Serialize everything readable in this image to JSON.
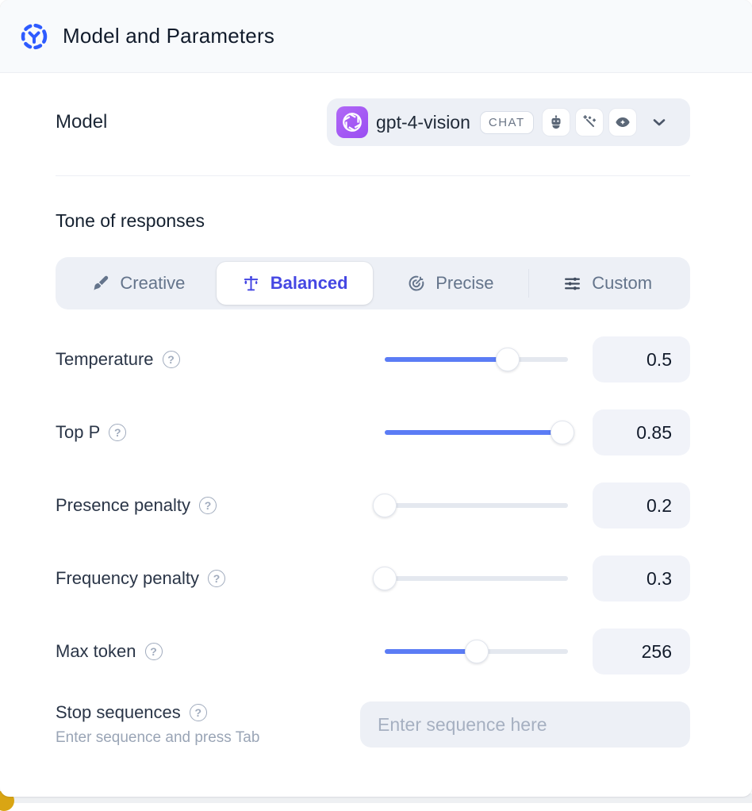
{
  "header": {
    "title": "Model and Parameters"
  },
  "model_row": {
    "label": "Model",
    "selector": {
      "model_name": "gpt-4-vision",
      "type_badge": "CHAT",
      "capability_icons": [
        "robot-icon",
        "magic-wand-icon",
        "vision-eye-icon"
      ]
    }
  },
  "tone": {
    "heading": "Tone of responses",
    "tabs": [
      {
        "label": "Creative",
        "icon": "paintbrush-icon",
        "active": false
      },
      {
        "label": "Balanced",
        "icon": "balance-scale-icon",
        "active": true
      },
      {
        "label": "Precise",
        "icon": "target-icon",
        "active": false
      },
      {
        "label": "Custom",
        "icon": "sliders-icon",
        "active": false
      }
    ]
  },
  "parameters": [
    {
      "label": "Temperature",
      "value": "0.5",
      "slider_percent": 67
    },
    {
      "label": "Top P",
      "value": "0.85",
      "slider_percent": 97
    },
    {
      "label": "Presence penalty",
      "value": "0.2",
      "slider_percent": 0
    },
    {
      "label": "Frequency penalty",
      "value": "0.3",
      "slider_percent": 0
    },
    {
      "label": "Max token",
      "value": "256",
      "slider_percent": 50
    }
  ],
  "stop_sequences": {
    "label": "Stop sequences",
    "hint": "Enter sequence and press Tab",
    "placeholder": "Enter sequence here"
  },
  "colors": {
    "accent_blue": "#5b7cf5",
    "active_tab_indigo": "#4547e3",
    "header_icon_blue": "#2e5bff",
    "provider_purple": "#9a4ef2",
    "corner_yellow": "#d9a514"
  }
}
